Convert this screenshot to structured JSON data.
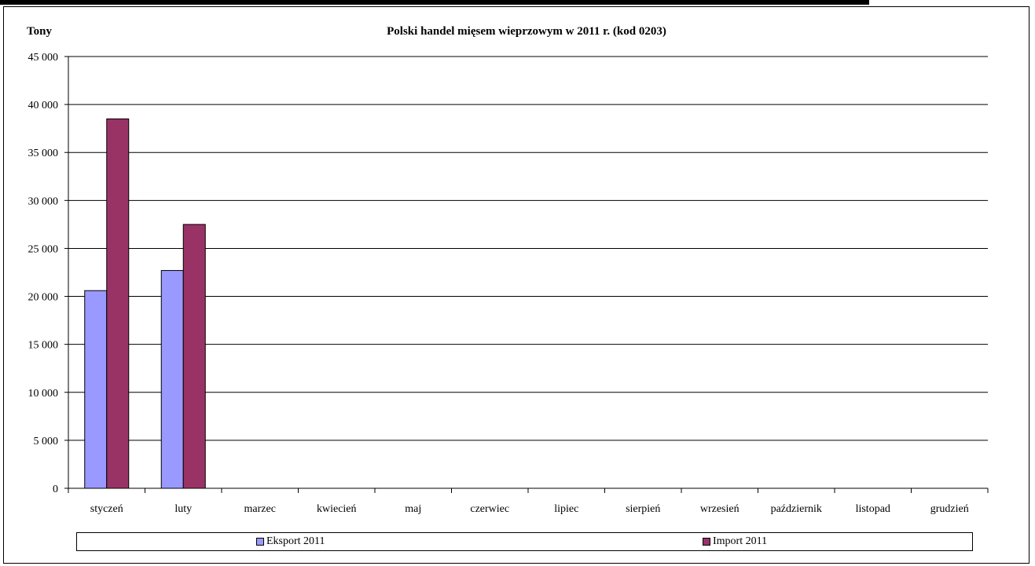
{
  "chart_data": {
    "type": "bar",
    "title": "Polski handel mięsem wieprzowym w 2011 r. (kod 0203)",
    "ylabel": "Tony",
    "xlabel": "",
    "categories": [
      "styczeń",
      "luty",
      "marzec",
      "kwiecień",
      "maj",
      "czerwiec",
      "lipiec",
      "sierpień",
      "wrzesień",
      "październik",
      "listopad",
      "grudzień"
    ],
    "series": [
      {
        "name": "Eksport 2011",
        "color": "#9999ff",
        "values": [
          20600,
          22700,
          null,
          null,
          null,
          null,
          null,
          null,
          null,
          null,
          null,
          null
        ]
      },
      {
        "name": "Import 2011",
        "color": "#993366",
        "values": [
          38500,
          27500,
          null,
          null,
          null,
          null,
          null,
          null,
          null,
          null,
          null,
          null
        ]
      }
    ],
    "ylim": [
      0,
      45000
    ],
    "yticks": [
      "0",
      "5 000",
      "10 000",
      "15 000",
      "20 000",
      "25 000",
      "30 000",
      "35 000",
      "40 000",
      "45 000"
    ],
    "ytick_values": [
      0,
      5000,
      10000,
      15000,
      20000,
      25000,
      30000,
      35000,
      40000,
      45000
    ],
    "grid": true,
    "legend_position": "bottom"
  }
}
